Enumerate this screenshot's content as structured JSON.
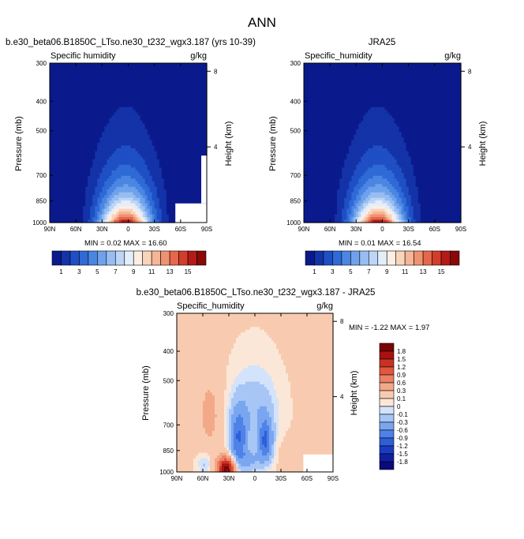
{
  "figure": {
    "title": "ANN"
  },
  "palette": {
    "abs": [
      "#0a1a8c",
      "#1433a8",
      "#1f4fc4",
      "#2f6ad6",
      "#4a86e2",
      "#6fa2eb",
      "#97bdf2",
      "#bdd5f7",
      "#e4eefb",
      "#fdeee2",
      "#f9d4bb",
      "#f5b596",
      "#ef9271",
      "#e6674b",
      "#d43d2b",
      "#b41a17",
      "#8a0808"
    ],
    "diff": [
      "#0a0a7a",
      "#101fa0",
      "#1a3cc0",
      "#2d5fd8",
      "#4f82e8",
      "#7aa6f0",
      "#a7c6f6",
      "#d3e3fb",
      "#fbe7d8",
      "#f8cbb0",
      "#f3a989",
      "#ec8163",
      "#e0583f",
      "#c93222",
      "#a81212",
      "#7a0404"
    ]
  },
  "panels": {
    "model": {
      "title": "b.e30_beta06.B1850C_LTso.ne30_t232_wgx3.187 (yrs 10-39)",
      "var_label": "Specific humidity",
      "units": "g/kg",
      "ylabel": "Pressure (mb)",
      "ylabel_right": "Height (km)",
      "min_max": "MIN =  0.02  MAX =  16.60"
    },
    "obs": {
      "title": "JRA25",
      "var_label": "Specific_humidity",
      "units": "g/kg",
      "ylabel": "Pressure (mb)",
      "ylabel_right": "Height (km)",
      "min_max": "MIN =  0.01  MAX =  16.54"
    },
    "diff": {
      "title": "b.e30_beta06.B1850C_LTso.ne30_t232_wgx3.187 - JRA25",
      "var_label": "Specific_humidity",
      "units": "g/kg",
      "ylabel": "Pressure (mb)",
      "ylabel_right": "Height (km)",
      "min_max": "MIN = -1.22  MAX =   1.97"
    }
  },
  "chart_data": [
    {
      "type": "heatmap",
      "panel": "model",
      "title": "b.e30_beta06.B1850C_LTso.ne30_t232_wgx3.187 (yrs 10-39)",
      "variable": "Specific humidity",
      "units": "g/kg",
      "x_ticks": [
        "90N",
        "60N",
        "30N",
        "0",
        "30S",
        "60S",
        "90S"
      ],
      "x_range": [
        90,
        -90
      ],
      "y_ticks": [
        300,
        400,
        500,
        700,
        850,
        1000
      ],
      "y_range": [
        300,
        1000
      ],
      "y_scale": "log",
      "right_ticks_km": [
        8,
        4
      ],
      "peak_lat": 3,
      "min": 0.02,
      "max": 16.6,
      "contour_levels": [
        1,
        2,
        3,
        4,
        5,
        6,
        7,
        8,
        9,
        10,
        11,
        12,
        13,
        14,
        15
      ],
      "colorbar_labels": [
        "1",
        "3",
        "5",
        "7",
        "9",
        "11",
        "13",
        "15"
      ]
    },
    {
      "type": "heatmap",
      "panel": "obs",
      "title": "JRA25",
      "variable": "Specific_humidity",
      "units": "g/kg",
      "x_ticks": [
        "90N",
        "60N",
        "30N",
        "0",
        "30S",
        "60S",
        "90S"
      ],
      "x_range": [
        90,
        -90
      ],
      "y_ticks": [
        300,
        400,
        500,
        700,
        850,
        1000
      ],
      "y_range": [
        300,
        1000
      ],
      "y_scale": "log",
      "right_ticks_km": [
        8,
        4
      ],
      "peak_lat": 5,
      "min": 0.01,
      "max": 16.54,
      "contour_levels": [
        1,
        2,
        3,
        4,
        5,
        6,
        7,
        8,
        9,
        10,
        11,
        12,
        13,
        14,
        15
      ],
      "colorbar_labels": [
        "1",
        "3",
        "5",
        "7",
        "9",
        "11",
        "13",
        "15"
      ]
    },
    {
      "type": "heatmap",
      "panel": "diff",
      "title": "b.e30_beta06.B1850C_LTso.ne30_t232_wgx3.187 - JRA25",
      "variable": "Specific_humidity",
      "units": "g/kg",
      "x_ticks": [
        "90N",
        "60N",
        "30N",
        "0",
        "30S",
        "60S",
        "90S"
      ],
      "x_range": [
        90,
        -90
      ],
      "y_ticks": [
        300,
        400,
        500,
        700,
        850,
        1000
      ],
      "y_range": [
        300,
        1000
      ],
      "y_scale": "log",
      "right_ticks_km": [
        8,
        4
      ],
      "min": -1.22,
      "max": 1.97,
      "features": [
        {
          "lat": 33,
          "p": 960,
          "value": 1.9
        },
        {
          "lat": 20,
          "p": 760,
          "value": -0.9
        },
        {
          "lat": -12,
          "p": 800,
          "value": -1.0
        },
        {
          "lat": 10,
          "p": 900,
          "value": -0.4
        },
        {
          "lat": 52,
          "p": 620,
          "value": 0.3
        },
        {
          "lat": -45,
          "p": 900,
          "value": 0.15
        },
        {
          "lat": -82,
          "p": 780,
          "value": 0.2
        }
      ],
      "colorbar_labels": [
        "1.8",
        "1.5",
        "1.2",
        "0.9",
        "0.6",
        "0.3",
        "0.1",
        "0",
        "-0.1",
        "-0.3",
        "-0.6",
        "-0.9",
        "-1.2",
        "-1.5",
        "-1.8"
      ]
    }
  ]
}
